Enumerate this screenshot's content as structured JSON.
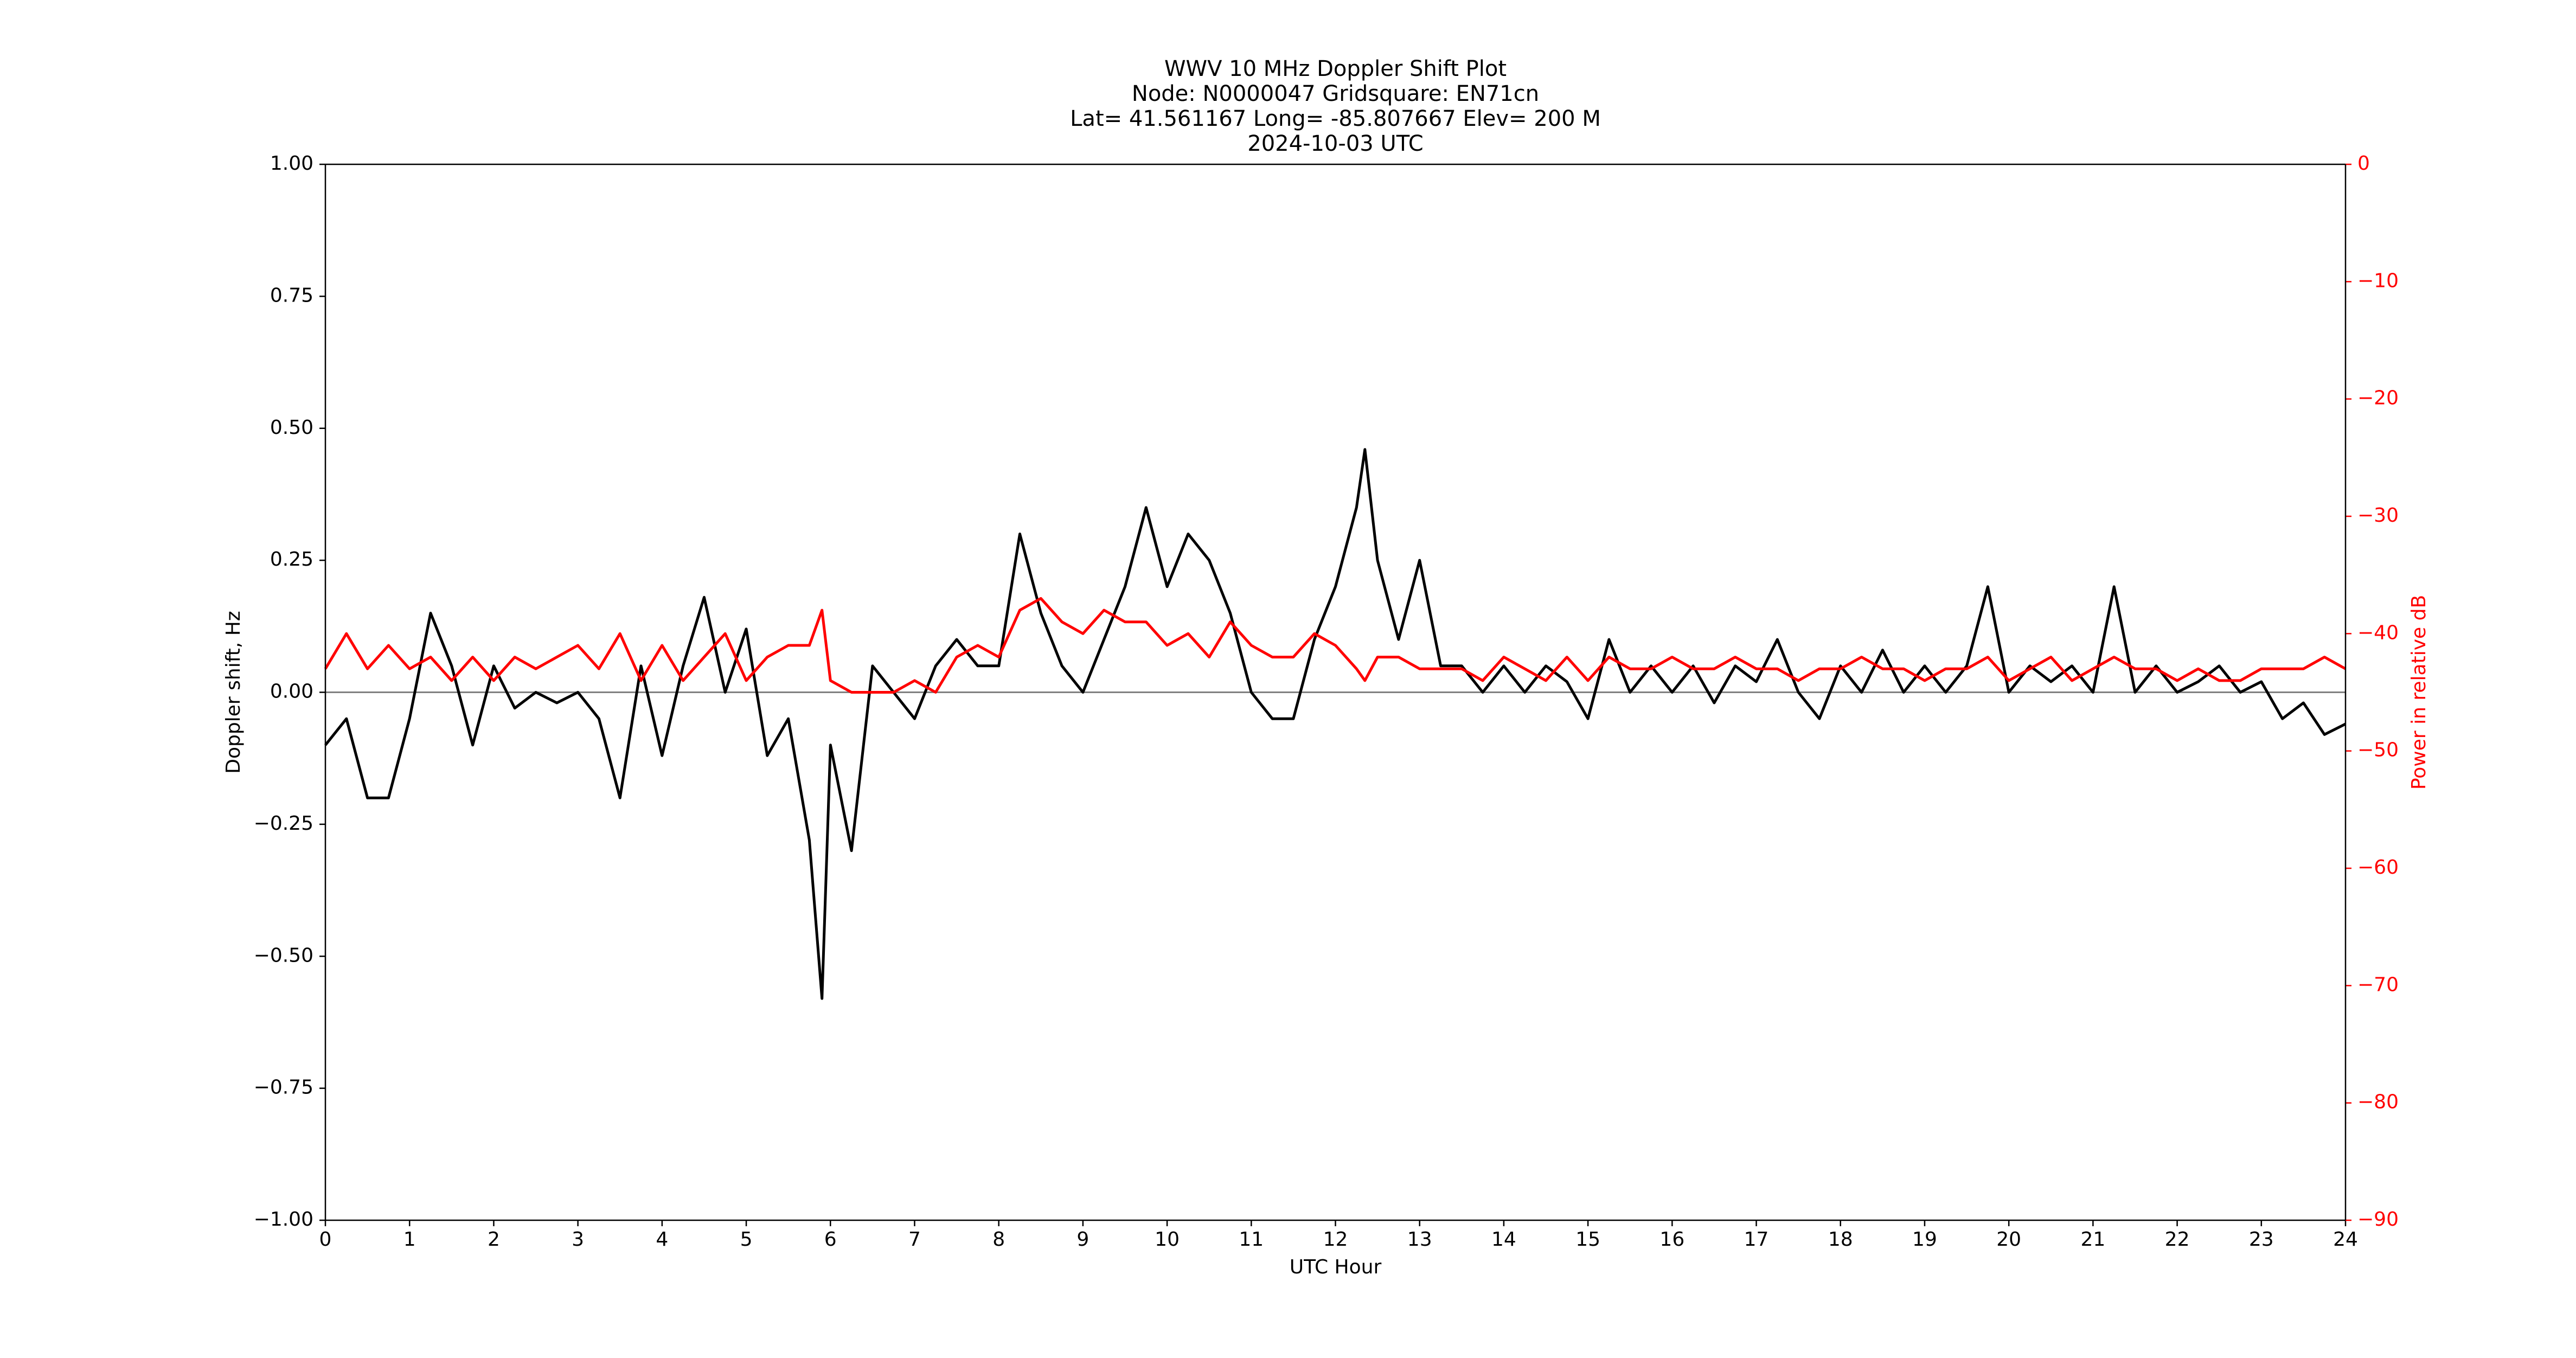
{
  "chart_data": {
    "type": "line",
    "title": [
      "WWV 10 MHz Doppler Shift Plot",
      "Node:  N0000047     Gridsquare:  EN71cn",
      "Lat= 41.561167    Long= -85.807667    Elev= 200 M",
      "2024-10-03  UTC"
    ],
    "xlabel": "UTC Hour",
    "ylabel": "Doppler shift, Hz",
    "y2label": "Power in relative dB",
    "x": [
      0,
      0.25,
      0.5,
      0.75,
      1,
      1.25,
      1.5,
      1.75,
      2,
      2.25,
      2.5,
      2.75,
      3,
      3.25,
      3.5,
      3.75,
      4,
      4.25,
      4.5,
      4.75,
      5,
      5.25,
      5.5,
      5.75,
      5.9,
      6,
      6.25,
      6.5,
      6.75,
      7,
      7.25,
      7.5,
      7.75,
      8,
      8.25,
      8.5,
      8.75,
      9,
      9.25,
      9.5,
      9.75,
      10,
      10.25,
      10.5,
      10.75,
      11,
      11.25,
      11.5,
      11.75,
      12,
      12.25,
      12.35,
      12.5,
      12.75,
      13,
      13.25,
      13.5,
      13.75,
      14,
      14.25,
      14.5,
      14.75,
      15,
      15.25,
      15.5,
      15.75,
      16,
      16.25,
      16.5,
      16.75,
      17,
      17.25,
      17.5,
      17.75,
      18,
      18.25,
      18.5,
      18.75,
      19,
      19.25,
      19.5,
      19.75,
      20,
      20.25,
      20.5,
      20.75,
      21,
      21.25,
      21.5,
      21.75,
      22,
      22.25,
      22.5,
      22.75,
      23,
      23.25,
      23.5,
      23.75,
      24
    ],
    "series": [
      {
        "color": "#000000",
        "axis": "y",
        "values": [
          -0.1,
          -0.05,
          -0.2,
          -0.2,
          -0.05,
          0.15,
          0.05,
          -0.1,
          0.05,
          -0.03,
          0,
          -0.02,
          0,
          -0.05,
          -0.2,
          0.05,
          -0.12,
          0.05,
          0.18,
          0,
          0.12,
          -0.12,
          -0.05,
          -0.28,
          -0.58,
          -0.1,
          -0.3,
          0.05,
          0,
          -0.05,
          0.05,
          0.1,
          0.05,
          0.05,
          0.3,
          0.15,
          0.05,
          0,
          0.1,
          0.2,
          0.35,
          0.2,
          0.3,
          0.25,
          0.15,
          0,
          -0.05,
          -0.05,
          0.1,
          0.2,
          0.35,
          0.46,
          0.25,
          0.1,
          0.25,
          0.05,
          0.05,
          0,
          0.05,
          0,
          0.05,
          0.02,
          -0.05,
          0.1,
          0,
          0.05,
          0,
          0.05,
          -0.02,
          0.05,
          0.02,
          0.1,
          0,
          -0.05,
          0.05,
          0,
          0.08,
          0,
          0.05,
          0,
          0.05,
          0.2,
          0,
          0.05,
          0.02,
          0.05,
          0,
          0.2,
          0,
          0.05,
          0,
          0.02,
          0.05,
          0,
          0.02,
          -0.05,
          -0.02,
          -0.08,
          -0.06
        ]
      },
      {
        "color": "#ff0000",
        "axis": "y2",
        "values": [
          -43,
          -40,
          -43,
          -41,
          -43,
          -42,
          -44,
          -42,
          -44,
          -42,
          -43,
          -42,
          -41,
          -43,
          -40,
          -44,
          -41,
          -44,
          -42,
          -40,
          -44,
          -42,
          -41,
          -41,
          -38,
          -44,
          -45,
          -45,
          -45,
          -44,
          -45,
          -42,
          -41,
          -42,
          -38,
          -37,
          -39,
          -40,
          -38,
          -39,
          -39,
          -41,
          -40,
          -42,
          -39,
          -41,
          -42,
          -42,
          -40,
          -41,
          -43,
          -44,
          -42,
          -42,
          -43,
          -43,
          -43,
          -44,
          -42,
          -43,
          -44,
          -42,
          -44,
          -42,
          -43,
          -43,
          -42,
          -43,
          -43,
          -42,
          -43,
          -43,
          -44,
          -43,
          -43,
          -42,
          -43,
          -43,
          -44,
          -43,
          -43,
          -42,
          -44,
          -43,
          -42,
          -44,
          -43,
          -42,
          -43,
          -43,
          -44,
          -43,
          -44,
          -44,
          -43,
          -43,
          -43,
          -42,
          -43
        ]
      }
    ],
    "xlim": [
      0,
      24
    ],
    "xticks": [
      0,
      1,
      2,
      3,
      4,
      5,
      6,
      7,
      8,
      9,
      10,
      11,
      12,
      13,
      14,
      15,
      16,
      17,
      18,
      19,
      20,
      21,
      22,
      23,
      24
    ],
    "ylim": [
      -1,
      1
    ],
    "yticks": [
      {
        "value": -1,
        "label": "−1.00"
      },
      {
        "value": -0.75,
        "label": "−0.75"
      },
      {
        "value": -0.5,
        "label": "−0.50"
      },
      {
        "value": -0.25,
        "label": "−0.25"
      },
      {
        "value": 0,
        "label": "0.00"
      },
      {
        "value": 0.25,
        "label": "0.25"
      },
      {
        "value": 0.5,
        "label": "0.50"
      },
      {
        "value": 0.75,
        "label": "0.75"
      },
      {
        "value": 1,
        "label": "1.00"
      }
    ],
    "y2lim": [
      -90,
      0
    ],
    "y2ticks": [
      {
        "value": -90,
        "label": "−90"
      },
      {
        "value": -80,
        "label": "−80"
      },
      {
        "value": -70,
        "label": "−70"
      },
      {
        "value": -60,
        "label": "−60"
      },
      {
        "value": -50,
        "label": "−50"
      },
      {
        "value": -40,
        "label": "−40"
      },
      {
        "value": -30,
        "label": "−30"
      },
      {
        "value": -20,
        "label": "−20"
      },
      {
        "value": -10,
        "label": "−10"
      },
      0
    ],
    "y2color": "#ff0000",
    "grid": false
  }
}
